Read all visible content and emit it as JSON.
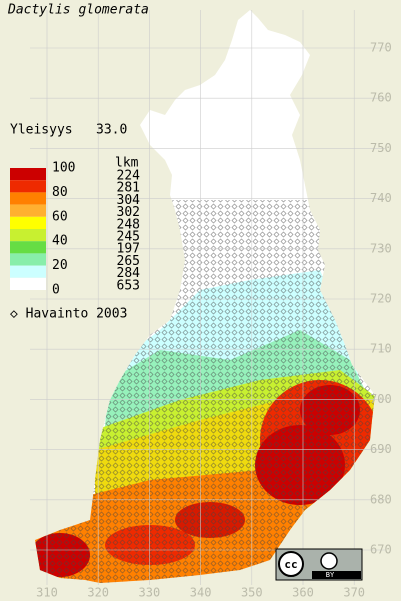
{
  "title": "Dactylis glomerata",
  "frequency": {
    "label": "Yleisyys",
    "value": "33.0"
  },
  "legend": {
    "count_header": "lkm",
    "scale_labels": [
      100,
      80,
      60,
      40,
      20,
      0
    ],
    "classes": [
      {
        "color": "#cc0000",
        "count": 224
      },
      {
        "color": "#ee2a00",
        "count": 281
      },
      {
        "color": "#ff8000",
        "count": 304
      },
      {
        "color": "#ffb030",
        "count": 302
      },
      {
        "color": "#ffff00",
        "count": 248
      },
      {
        "color": "#c8f030",
        "count": 245
      },
      {
        "color": "#66dd44",
        "count": 197
      },
      {
        "color": "#88eeaa",
        "count": 265
      },
      {
        "color": "#ccffff",
        "count": 284
      },
      {
        "color": "#ffffff",
        "count": 653
      }
    ]
  },
  "observation_note": "◇ Havainto 2003",
  "x_axis": {
    "ticks": [
      310,
      320,
      330,
      340,
      350,
      360,
      370
    ]
  },
  "y_axis": {
    "ticks": [
      670,
      680,
      690,
      700,
      710,
      720,
      730,
      740,
      750,
      760,
      770
    ]
  },
  "license": {
    "cc": "cc",
    "by": "BY"
  }
}
